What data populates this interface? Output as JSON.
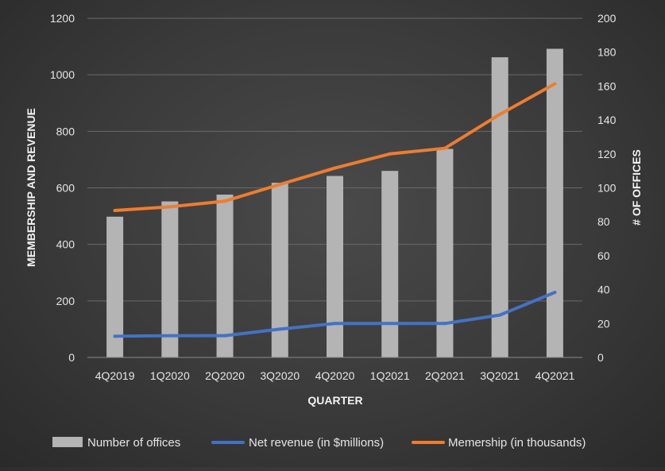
{
  "chart_data": {
    "type": "bar",
    "categories": [
      "4Q2019",
      "1Q2020",
      "2Q2020",
      "3Q2020",
      "4Q2020",
      "1Q2021",
      "2Q2021",
      "3Q2021",
      "4Q2021"
    ],
    "xlabel": "QUARTER",
    "ylabel_left": "MEMBERSHIP AND REVENUE",
    "ylabel_right": "# OF OFFICES",
    "ylim_left": [
      0,
      1200
    ],
    "ylim_right": [
      0,
      200
    ],
    "yticks_left": [
      0,
      200,
      400,
      600,
      800,
      1000,
      1200
    ],
    "yticks_right": [
      0,
      20,
      40,
      60,
      80,
      100,
      120,
      140,
      160,
      180,
      200
    ],
    "grid": true,
    "legend_position": "bottom",
    "series": [
      {
        "name": "Number of offices",
        "type": "bar",
        "axis": "right",
        "color": "#b4b4b4",
        "values": [
          83,
          92,
          96,
          103,
          107,
          110,
          123,
          177,
          182
        ]
      },
      {
        "name": "Net revenue (in $millions)",
        "type": "line",
        "axis": "left",
        "color": "#4472c4",
        "values": [
          75,
          77,
          77,
          100,
          120,
          120,
          120,
          150,
          230
        ]
      },
      {
        "name": "Memership (in thousands)",
        "type": "line",
        "axis": "left",
        "color": "#ed7d31",
        "values": [
          520,
          533,
          553,
          612,
          670,
          720,
          740,
          860,
          968
        ]
      }
    ]
  }
}
